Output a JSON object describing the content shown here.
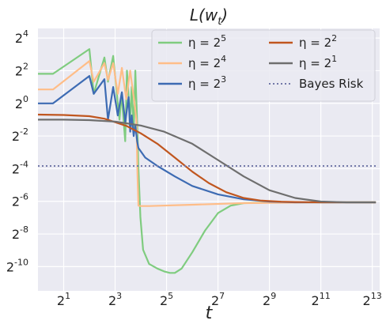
{
  "chart_data": {
    "type": "line",
    "title": "L(w_t)",
    "title_main": "L(w",
    "title_sub": "t",
    "title_close": ")",
    "xlabel": "t",
    "ylabel": "",
    "x_scale": "log2",
    "y_scale": "log2",
    "xlim": [
      1,
      10000
    ],
    "ylim": [
      0.00035,
      24
    ],
    "grid": true,
    "legend_placement": "top-right",
    "x_ticks": [
      {
        "value": 2,
        "base": "2",
        "exp": "1"
      },
      {
        "value": 8,
        "base": "2",
        "exp": "3"
      },
      {
        "value": 32,
        "base": "2",
        "exp": "5"
      },
      {
        "value": 128,
        "base": "2",
        "exp": "7"
      },
      {
        "value": 512,
        "base": "2",
        "exp": "9"
      },
      {
        "value": 2048,
        "base": "2",
        "exp": "11"
      },
      {
        "value": 8192,
        "base": "2",
        "exp": "13"
      }
    ],
    "y_ticks": [
      {
        "value": 16,
        "base": "2",
        "exp": "4"
      },
      {
        "value": 4,
        "base": "2",
        "exp": "2"
      },
      {
        "value": 1,
        "base": "2",
        "exp": "0"
      },
      {
        "value": 0.25,
        "base": "2",
        "exp": "-2"
      },
      {
        "value": 0.0625,
        "base": "2",
        "exp": "-4"
      },
      {
        "value": 0.015625,
        "base": "2",
        "exp": "-6"
      },
      {
        "value": 0.00390625,
        "base": "2",
        "exp": "-8"
      },
      {
        "value": 0.0009765625,
        "base": "2",
        "exp": "-10"
      }
    ],
    "series": [
      {
        "name": "η = 2^5",
        "name_main": "η = 2",
        "name_exp": "5",
        "color": "#7fcc7f",
        "points": [
          [
            1,
            3.5
          ],
          [
            1.5,
            3.5
          ],
          [
            4,
            10
          ],
          [
            4.5,
            1.5
          ],
          [
            6,
            7
          ],
          [
            6.6,
            2.5
          ],
          [
            7.6,
            7.5
          ],
          [
            8.6,
            1.0
          ],
          [
            9,
            0.5
          ],
          [
            9.5,
            1.5
          ],
          [
            10.5,
            0.2
          ],
          [
            11,
            4.0
          ],
          [
            12,
            0.5
          ],
          [
            12.5,
            2.0
          ],
          [
            13.2,
            0.3
          ],
          [
            13.8,
            4.0
          ],
          [
            14.6,
            0.3
          ],
          [
            15,
            0.0625
          ],
          [
            15.8,
            0.008
          ],
          [
            17,
            0.002
          ],
          [
            20,
            0.0011
          ],
          [
            25,
            0.0009
          ],
          [
            30,
            0.0008
          ],
          [
            35,
            0.00075
          ],
          [
            40,
            0.00075
          ],
          [
            48,
            0.0009
          ],
          [
            64,
            0.0018
          ],
          [
            90,
            0.0045
          ],
          [
            128,
            0.0095
          ],
          [
            180,
            0.013
          ],
          [
            256,
            0.0145
          ],
          [
            512,
            0.0149
          ],
          [
            1024,
            0.015
          ],
          [
            2048,
            0.015
          ],
          [
            9000,
            0.015
          ]
        ]
      },
      {
        "name": "η = 2^4",
        "name_main": "η = 2",
        "name_exp": "4",
        "color": "#ffbd88",
        "points": [
          [
            1,
            1.8
          ],
          [
            1.5,
            1.8
          ],
          [
            4,
            6.0
          ],
          [
            4.5,
            2.5
          ],
          [
            6,
            5.5
          ],
          [
            6.6,
            2.7
          ],
          [
            7.6,
            5.5
          ],
          [
            8.6,
            1.5
          ],
          [
            9.6,
            4.5
          ],
          [
            10.8,
            1.2
          ],
          [
            12,
            4.0
          ],
          [
            13.5,
            1.0
          ],
          [
            14.2,
            0.5
          ],
          [
            14.6,
            0.05
          ],
          [
            15,
            0.013
          ],
          [
            16,
            0.0128
          ],
          [
            20,
            0.0128
          ],
          [
            60,
            0.0135
          ],
          [
            256,
            0.0145
          ],
          [
            2048,
            0.015
          ],
          [
            9000,
            0.015
          ]
        ]
      },
      {
        "name": "η = 2^3",
        "name_main": "η = 2",
        "name_exp": "3",
        "color": "#3d6bb3",
        "points": [
          [
            1,
            1.0
          ],
          [
            1.5,
            1.0
          ],
          [
            4,
            3.2
          ],
          [
            4.5,
            1.5
          ],
          [
            6,
            2.8
          ],
          [
            6.6,
            0.5
          ],
          [
            7.6,
            2.0
          ],
          [
            8.6,
            0.6
          ],
          [
            9.6,
            1.6
          ],
          [
            10.5,
            0.45
          ],
          [
            11.5,
            1.3
          ],
          [
            12,
            0.3
          ],
          [
            12.5,
            0.6
          ],
          [
            13.2,
            0.25
          ],
          [
            13.8,
            0.4
          ],
          [
            14.5,
            0.2
          ],
          [
            15,
            0.15
          ],
          [
            18,
            0.1
          ],
          [
            25,
            0.07
          ],
          [
            40,
            0.045
          ],
          [
            64,
            0.03
          ],
          [
            128,
            0.021
          ],
          [
            256,
            0.017
          ],
          [
            512,
            0.0155
          ],
          [
            1024,
            0.015
          ],
          [
            2048,
            0.015
          ],
          [
            9000,
            0.015
          ]
        ]
      },
      {
        "name": "η = 2^2",
        "name_main": "η = 2",
        "name_exp": "2",
        "color": "#c0561f",
        "points": [
          [
            1,
            0.62
          ],
          [
            2,
            0.61
          ],
          [
            4,
            0.58
          ],
          [
            6,
            0.52
          ],
          [
            8,
            0.45
          ],
          [
            11,
            0.38
          ],
          [
            16,
            0.28
          ],
          [
            25,
            0.18
          ],
          [
            40,
            0.1
          ],
          [
            64,
            0.055
          ],
          [
            100,
            0.034
          ],
          [
            160,
            0.023
          ],
          [
            256,
            0.018
          ],
          [
            400,
            0.0162
          ],
          [
            700,
            0.0154
          ],
          [
            1024,
            0.0152
          ],
          [
            2048,
            0.015
          ],
          [
            9000,
            0.015
          ]
        ]
      },
      {
        "name": "η = 2^1",
        "name_main": "η = 2",
        "name_exp": "1",
        "color": "#6e6e6e",
        "points": [
          [
            1,
            0.5
          ],
          [
            2,
            0.5
          ],
          [
            4,
            0.49
          ],
          [
            8,
            0.46
          ],
          [
            16,
            0.39
          ],
          [
            30,
            0.3
          ],
          [
            64,
            0.18
          ],
          [
            128,
            0.09
          ],
          [
            256,
            0.045
          ],
          [
            512,
            0.025
          ],
          [
            1024,
            0.018
          ],
          [
            2048,
            0.0155
          ],
          [
            4096,
            0.015
          ],
          [
            9000,
            0.015
          ]
        ]
      },
      {
        "name": "Bayes Risk",
        "name_main": "Bayes Risk",
        "name_exp": "",
        "color": "#7278a8",
        "dashed": true,
        "points": [
          [
            1,
            0.07
          ],
          [
            9000,
            0.07
          ]
        ]
      }
    ]
  }
}
